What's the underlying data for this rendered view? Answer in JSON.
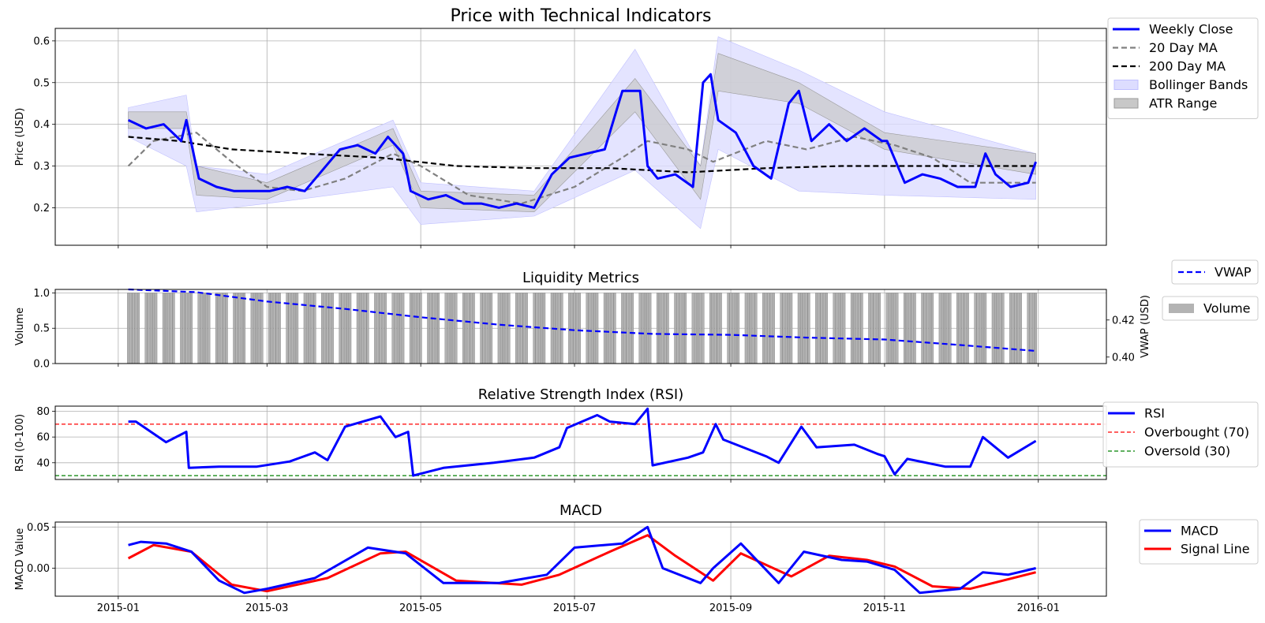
{
  "chart_data": [
    {
      "type": "line",
      "title": "Price with Technical Indicators",
      "xlabel": "",
      "ylabel": "Price (USD)",
      "ylim": [
        0.11,
        0.63
      ],
      "yticks": [
        0.2,
        0.3,
        0.4,
        0.5,
        0.6
      ],
      "ytick_labels": [
        "0.2",
        "0.3",
        "0.4",
        "0.5",
        "0.6"
      ],
      "xlim": [
        "2014-12-07",
        "2016-01-28"
      ],
      "xticks": [
        "2015-01-01",
        "2015-03-01",
        "2015-05-01",
        "2015-07-01",
        "2015-09-01",
        "2015-11-01",
        "2016-01-01"
      ],
      "grid": true,
      "legend_position": "right",
      "legend": [
        "Weekly Close",
        "20 Day MA",
        "200 Day MA",
        "Bollinger Bands",
        "ATR Range"
      ],
      "series": [
        {
          "name": "Weekly Close",
          "color": "#0000ff",
          "style": "solid",
          "x": [
            "2015-01-05",
            "2015-01-12",
            "2015-01-19",
            "2015-01-26",
            "2015-01-28",
            "2015-02-02",
            "2015-02-09",
            "2015-02-16",
            "2015-02-23",
            "2015-03-02",
            "2015-03-09",
            "2015-03-16",
            "2015-03-23",
            "2015-03-30",
            "2015-04-06",
            "2015-04-13",
            "2015-04-18",
            "2015-04-24",
            "2015-04-27",
            "2015-05-04",
            "2015-05-11",
            "2015-05-18",
            "2015-05-25",
            "2015-06-01",
            "2015-06-08",
            "2015-06-15",
            "2015-06-22",
            "2015-06-29",
            "2015-07-06",
            "2015-07-13",
            "2015-07-20",
            "2015-07-27",
            "2015-07-30",
            "2015-08-03",
            "2015-08-10",
            "2015-08-17",
            "2015-08-21",
            "2015-08-24",
            "2015-08-27",
            "2015-09-03",
            "2015-09-10",
            "2015-09-17",
            "2015-09-24",
            "2015-09-28",
            "2015-10-03",
            "2015-10-10",
            "2015-10-17",
            "2015-10-24",
            "2015-10-31",
            "2015-11-02",
            "2015-11-09",
            "2015-11-16",
            "2015-11-23",
            "2015-11-30",
            "2015-12-07",
            "2015-12-11",
            "2015-12-15",
            "2015-12-21",
            "2015-12-28",
            "2015-12-31"
          ],
          "values": [
            0.41,
            0.39,
            0.4,
            0.36,
            0.41,
            0.27,
            0.25,
            0.24,
            0.24,
            0.24,
            0.25,
            0.24,
            0.29,
            0.34,
            0.35,
            0.33,
            0.37,
            0.33,
            0.24,
            0.22,
            0.23,
            0.21,
            0.21,
            0.2,
            0.21,
            0.2,
            0.28,
            0.32,
            0.33,
            0.34,
            0.48,
            0.48,
            0.3,
            0.27,
            0.28,
            0.25,
            0.5,
            0.52,
            0.41,
            0.38,
            0.3,
            0.27,
            0.45,
            0.48,
            0.36,
            0.4,
            0.36,
            0.39,
            0.36,
            0.36,
            0.26,
            0.28,
            0.27,
            0.25,
            0.25,
            0.33,
            0.28,
            0.25,
            0.26,
            0.31
          ]
        },
        {
          "name": "20 Day MA",
          "color": "#808080",
          "style": "dashed",
          "x": [
            "2015-01-05",
            "2015-01-15",
            "2015-02-01",
            "2015-02-15",
            "2015-03-01",
            "2015-03-15",
            "2015-04-01",
            "2015-04-20",
            "2015-05-01",
            "2015-05-20",
            "2015-06-10",
            "2015-07-01",
            "2015-07-20",
            "2015-07-30",
            "2015-08-15",
            "2015-08-25",
            "2015-09-15",
            "2015-10-01",
            "2015-10-20",
            "2015-11-05",
            "2015-11-20",
            "2015-12-05",
            "2015-12-31"
          ],
          "values": [
            0.3,
            0.36,
            0.38,
            0.31,
            0.25,
            0.24,
            0.27,
            0.33,
            0.3,
            0.23,
            0.21,
            0.25,
            0.32,
            0.36,
            0.34,
            0.31,
            0.36,
            0.34,
            0.37,
            0.35,
            0.32,
            0.26,
            0.26
          ]
        },
        {
          "name": "200 Day MA",
          "color": "#000000",
          "style": "dashed",
          "x": [
            "2015-01-05",
            "2015-01-25",
            "2015-02-15",
            "2015-03-15",
            "2015-04-15",
            "2015-05-15",
            "2015-06-15",
            "2015-07-15",
            "2015-08-15",
            "2015-09-15",
            "2015-10-15",
            "2015-11-15",
            "2015-12-31"
          ],
          "values": [
            0.37,
            0.36,
            0.34,
            0.33,
            0.32,
            0.3,
            0.295,
            0.295,
            0.285,
            0.295,
            0.3,
            0.3,
            0.3
          ]
        },
        {
          "name": "Bollinger Bands",
          "color": "#ddddff",
          "style": "band",
          "x": [
            "2015-01-05",
            "2015-01-28",
            "2015-02-01",
            "2015-03-01",
            "2015-04-20",
            "2015-05-01",
            "2015-06-15",
            "2015-07-25",
            "2015-08-20",
            "2015-08-27",
            "2015-09-28",
            "2015-11-01",
            "2015-12-31"
          ],
          "upper": [
            0.44,
            0.47,
            0.3,
            0.28,
            0.41,
            0.26,
            0.24,
            0.58,
            0.3,
            0.61,
            0.53,
            0.43,
            0.33
          ],
          "lower": [
            0.37,
            0.3,
            0.19,
            0.21,
            0.25,
            0.16,
            0.18,
            0.29,
            0.15,
            0.34,
            0.24,
            0.23,
            0.22
          ]
        },
        {
          "name": "ATR Range",
          "color": "#c8c8c8",
          "style": "band",
          "x": [
            "2015-01-05",
            "2015-01-28",
            "2015-02-01",
            "2015-03-01",
            "2015-04-20",
            "2015-05-01",
            "2015-06-15",
            "2015-07-25",
            "2015-08-20",
            "2015-08-27",
            "2015-09-28",
            "2015-11-01",
            "2015-12-31"
          ],
          "upper": [
            0.43,
            0.43,
            0.3,
            0.26,
            0.39,
            0.24,
            0.23,
            0.51,
            0.3,
            0.57,
            0.5,
            0.38,
            0.33
          ],
          "lower": [
            0.39,
            0.39,
            0.23,
            0.22,
            0.35,
            0.2,
            0.19,
            0.43,
            0.22,
            0.48,
            0.45,
            0.34,
            0.28
          ]
        }
      ]
    },
    {
      "type": "bar",
      "title": "Liquidity Metrics",
      "ylabel": "Volume",
      "ylabel_right": "VWAP (USD)",
      "ylim": [
        0,
        1.05
      ],
      "yticks": [
        0.0,
        0.5,
        1.0
      ],
      "ytick_labels": [
        "0.0",
        "0.5",
        "1.0"
      ],
      "ylim_right": [
        0.3965,
        0.4365
      ],
      "yticks_right": [
        0.4,
        0.42
      ],
      "ytick_labels_right": [
        "0.40",
        "0.42"
      ],
      "grid": true,
      "legend": [
        "VWAP",
        "Volume"
      ],
      "bars": {
        "name": "Volume",
        "color": "#b3b3b3",
        "start": "2015-01-05",
        "end": "2015-12-31",
        "pattern": "weekday trading days, value 1.0"
      },
      "series": [
        {
          "name": "VWAP",
          "color": "#0000ff",
          "style": "dashed",
          "x": [
            "2015-01-05",
            "2015-02-01",
            "2015-03-01",
            "2015-04-01",
            "2015-05-01",
            "2015-06-01",
            "2015-07-01",
            "2015-08-01",
            "2015-09-01",
            "2015-10-01",
            "2015-11-01",
            "2015-12-01",
            "2015-12-31"
          ],
          "values": [
            0.4365,
            0.435,
            0.43,
            0.426,
            0.4215,
            0.4175,
            0.4145,
            0.4125,
            0.412,
            0.4105,
            0.4095,
            0.4065,
            0.4033
          ]
        }
      ]
    },
    {
      "type": "line",
      "title": "Relative Strength Index (RSI)",
      "ylabel": "RSI (0-100)",
      "ylim": [
        27,
        84
      ],
      "yticks": [
        40,
        60,
        80
      ],
      "ytick_labels": [
        "40",
        "60",
        "80"
      ],
      "grid": true,
      "legend": [
        "RSI",
        "Overbought (70)",
        "Oversold (30)"
      ],
      "series": [
        {
          "name": "RSI",
          "color": "#0000ff",
          "style": "solid",
          "x": [
            "2015-01-05",
            "2015-01-08",
            "2015-01-20",
            "2015-01-25",
            "2015-01-28",
            "2015-01-29",
            "2015-02-10",
            "2015-02-25",
            "2015-03-10",
            "2015-03-20",
            "2015-03-25",
            "2015-04-01",
            "2015-04-15",
            "2015-04-21",
            "2015-04-26",
            "2015-04-28",
            "2015-05-10",
            "2015-05-30",
            "2015-06-15",
            "2015-06-25",
            "2015-06-28",
            "2015-07-10",
            "2015-07-15",
            "2015-07-25",
            "2015-07-30",
            "2015-08-01",
            "2015-08-15",
            "2015-08-21",
            "2015-08-26",
            "2015-08-29",
            "2015-09-15",
            "2015-09-20",
            "2015-09-29",
            "2015-10-05",
            "2015-10-20",
            "2015-10-29",
            "2015-11-01",
            "2015-11-05",
            "2015-11-10",
            "2015-11-25",
            "2015-12-05",
            "2015-12-10",
            "2015-12-20",
            "2015-12-31"
          ],
          "values": [
            72,
            72,
            56,
            61,
            64,
            36,
            37,
            37,
            41,
            48,
            42,
            68,
            76,
            60,
            64,
            30,
            36,
            40,
            44,
            52,
            67,
            77,
            72,
            70,
            82,
            38,
            44,
            48,
            70,
            58,
            45,
            40,
            68,
            52,
            54,
            47,
            45,
            31,
            43,
            37,
            37,
            60,
            44,
            57
          ]
        },
        {
          "name": "Overbought (70)",
          "color": "#ff0000",
          "style": "dashed",
          "y": 70
        },
        {
          "name": "Oversold (30)",
          "color": "#008000",
          "style": "dashed",
          "y": 30
        }
      ]
    },
    {
      "type": "line",
      "title": "MACD",
      "ylabel": "MACD Value",
      "ylim": [
        -0.034,
        0.056
      ],
      "yticks": [
        0.0,
        0.05
      ],
      "ytick_labels": [
        "0.00",
        "0.05"
      ],
      "grid": true,
      "legend": [
        "MACD",
        "Signal Line"
      ],
      "series": [
        {
          "name": "MACD",
          "color": "#0000ff",
          "style": "solid",
          "x": [
            "2015-01-05",
            "2015-01-10",
            "2015-01-20",
            "2015-01-30",
            "2015-02-10",
            "2015-02-20",
            "2015-03-01",
            "2015-03-20",
            "2015-04-10",
            "2015-04-25",
            "2015-05-10",
            "2015-06-01",
            "2015-06-20",
            "2015-07-01",
            "2015-07-20",
            "2015-07-30",
            "2015-08-05",
            "2015-08-20",
            "2015-08-25",
            "2015-09-05",
            "2015-09-20",
            "2015-09-30",
            "2015-10-15",
            "2015-10-25",
            "2015-11-05",
            "2015-11-15",
            "2015-12-01",
            "2015-12-10",
            "2015-12-20",
            "2015-12-31"
          ],
          "values": [
            0.028,
            0.032,
            0.03,
            0.02,
            -0.015,
            -0.03,
            -0.025,
            -0.012,
            0.025,
            0.018,
            -0.018,
            -0.018,
            -0.008,
            0.025,
            0.03,
            0.05,
            0.0,
            -0.018,
            0.0,
            0.03,
            -0.018,
            0.02,
            0.01,
            0.008,
            -0.002,
            -0.03,
            -0.025,
            -0.005,
            -0.008,
            0.0
          ]
        },
        {
          "name": "Signal Line",
          "color": "#ff0000",
          "style": "solid",
          "x": [
            "2015-01-05",
            "2015-01-15",
            "2015-01-30",
            "2015-02-15",
            "2015-03-01",
            "2015-03-25",
            "2015-04-15",
            "2015-04-25",
            "2015-05-15",
            "2015-06-10",
            "2015-06-25",
            "2015-07-15",
            "2015-07-30",
            "2015-08-10",
            "2015-08-25",
            "2015-09-05",
            "2015-09-25",
            "2015-10-10",
            "2015-10-25",
            "2015-11-05",
            "2015-11-20",
            "2015-12-05",
            "2015-12-31"
          ],
          "values": [
            0.012,
            0.028,
            0.02,
            -0.02,
            -0.028,
            -0.012,
            0.018,
            0.02,
            -0.015,
            -0.02,
            -0.008,
            0.02,
            0.04,
            0.015,
            -0.015,
            0.018,
            -0.01,
            0.015,
            0.01,
            0.002,
            -0.022,
            -0.025,
            -0.005
          ]
        }
      ]
    }
  ]
}
